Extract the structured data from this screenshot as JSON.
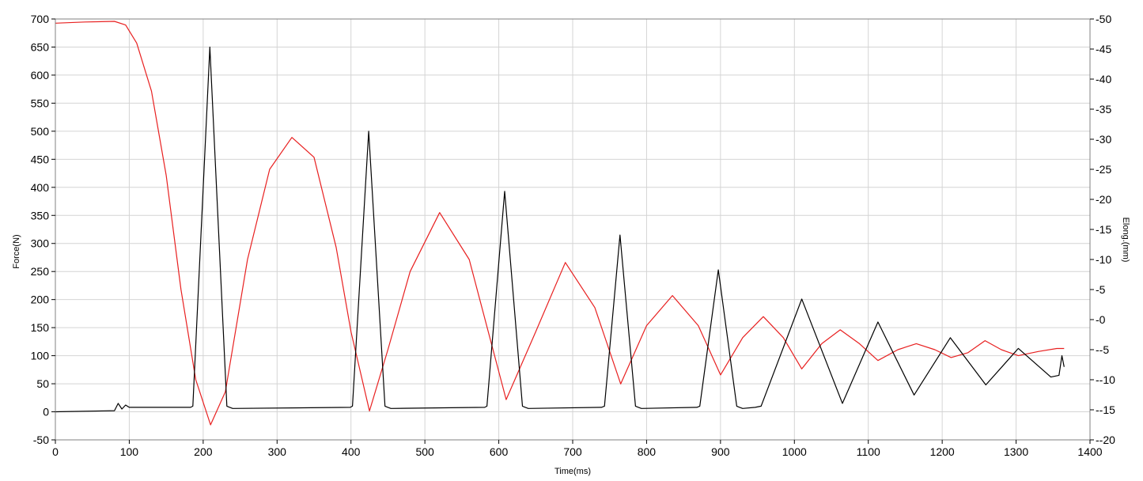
{
  "chart_data": {
    "type": "line",
    "title": "",
    "xlabel": "Time(ms)",
    "ylabel": "Force(N)",
    "y2label": "Elong.(mm)",
    "xlim": [
      0,
      1400
    ],
    "ylim": [
      -50,
      700
    ],
    "y2lim": [
      -20,
      50
    ],
    "grid": true,
    "x_ticks": [
      0,
      100,
      200,
      300,
      400,
      500,
      600,
      700,
      800,
      900,
      1000,
      1100,
      1200,
      1300,
      1400
    ],
    "y_ticks": [
      -50,
      0,
      50,
      100,
      150,
      200,
      250,
      300,
      350,
      400,
      450,
      500,
      550,
      600,
      650,
      700
    ],
    "y2_ticks": [
      -20,
      -15,
      -10,
      -5,
      0,
      5,
      10,
      15,
      20,
      25,
      30,
      35,
      40,
      45,
      50
    ],
    "series": [
      {
        "axis": "left",
        "color": "#000000",
        "x": [
          0,
          80,
          85,
          90,
          95,
          100,
          183,
          186,
          209,
          232,
          236,
          240,
          399,
          402,
          424,
          446,
          450,
          454,
          581,
          584,
          608,
          632,
          636,
          640,
          739,
          743,
          764,
          785,
          789,
          793,
          868,
          872,
          897,
          922,
          926,
          930,
          947,
          955,
          1010,
          1065,
          1113,
          1162,
          1211,
          1259,
          1303,
          1347,
          1358,
          1362,
          1365
        ],
        "y": [
          0,
          2,
          15,
          5,
          12,
          8,
          8,
          10,
          650,
          10,
          8,
          6,
          8,
          10,
          500,
          10,
          8,
          6,
          8,
          10,
          393,
          10,
          8,
          6,
          8,
          10,
          315,
          10,
          8,
          6,
          8,
          10,
          253,
          10,
          8,
          6,
          8,
          10,
          201,
          15,
          160,
          30,
          132,
          48,
          113,
          62,
          65,
          100,
          80
        ]
      },
      {
        "axis": "right",
        "color": "#e82020",
        "x": [
          0,
          40,
          80,
          95,
          110,
          130,
          150,
          170,
          190,
          210,
          230,
          260,
          290,
          320,
          350,
          380,
          400,
          425,
          450,
          480,
          520,
          560,
          610,
          650,
          690,
          730,
          765,
          800,
          835,
          870,
          900,
          930,
          958,
          985,
          1010,
          1037,
          1062,
          1088,
          1113,
          1140,
          1165,
          1190,
          1212,
          1235,
          1258,
          1280,
          1303,
          1330,
          1355,
          1365
        ],
        "y": [
          49.3,
          49.5,
          49.6,
          49,
          46,
          38,
          24,
          5,
          -10,
          -17.5,
          -12,
          10,
          25,
          30.3,
          27,
          12,
          -2,
          -15.2,
          -5,
          8,
          17.8,
          10,
          -13.3,
          -2,
          9.5,
          2,
          -10.7,
          -1,
          4,
          -1,
          -9.2,
          -3,
          0.5,
          -3,
          -8.2,
          -4,
          -1.7,
          -4,
          -6.8,
          -5,
          -4,
          -5,
          -6.3,
          -5.5,
          -3.5,
          -5,
          -6,
          -5.3,
          -4.8,
          -4.8
        ]
      }
    ]
  }
}
